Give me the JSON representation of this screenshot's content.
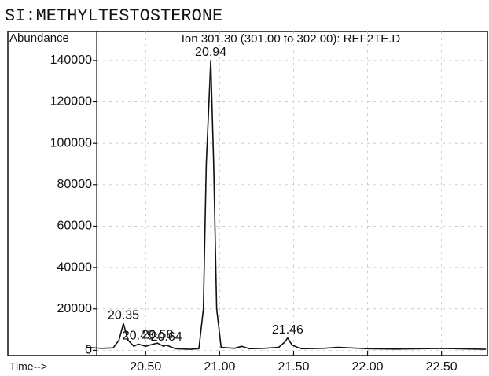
{
  "chart_data": {
    "type": "line",
    "header": "SI:METHYLTESTOSTERONE",
    "ylabel": "Abundance",
    "title": "Ion 301.30 (301.00 to 302.00): REF2TE.D",
    "xlabel": "Time-->",
    "x": [
      20.1,
      20.2,
      20.28,
      20.32,
      20.35,
      20.38,
      20.42,
      20.45,
      20.5,
      20.55,
      20.58,
      20.62,
      20.64,
      20.7,
      20.8,
      20.86,
      20.89,
      20.91,
      20.94,
      20.96,
      20.98,
      21.01,
      21.1,
      21.15,
      21.2,
      21.3,
      21.4,
      21.44,
      21.46,
      21.49,
      21.55,
      21.7,
      21.8,
      22.0,
      22.2,
      22.5,
      22.8
    ],
    "series": [
      {
        "color": "#111111",
        "values": [
          1500,
          1000,
          1200,
          5000,
          13000,
          5000,
          2000,
          3000,
          2000,
          3000,
          3500,
          2000,
          2500,
          800,
          500,
          800,
          20000,
          90000,
          140000,
          90000,
          20000,
          1500,
          1000,
          2000,
          800,
          1000,
          1500,
          4000,
          6000,
          2500,
          800,
          1000,
          1500,
          800,
          600,
          900,
          500
        ]
      }
    ],
    "peaks": [
      {
        "x": 20.35,
        "y": 13000
      },
      {
        "x": 20.45,
        "y": 3000
      },
      {
        "x": 20.58,
        "y": 3500
      },
      {
        "x": 20.64,
        "y": 2500
      },
      {
        "x": 20.94,
        "y": 140000
      },
      {
        "x": 21.46,
        "y": 6000
      }
    ],
    "xlim": [
      20.1,
      22.81
    ],
    "xticks": [
      {
        "value": 20.5,
        "label": "20.50"
      },
      {
        "value": 21.0,
        "label": "21.00"
      },
      {
        "value": 21.5,
        "label": "21.50"
      },
      {
        "value": 22.0,
        "label": "22.00"
      },
      {
        "value": 22.5,
        "label": "22.50"
      }
    ],
    "ylim": [
      -2500,
      154000
    ],
    "yticks": [
      0,
      20000,
      40000,
      60000,
      80000,
      100000,
      120000,
      140000
    ],
    "grid": true
  }
}
